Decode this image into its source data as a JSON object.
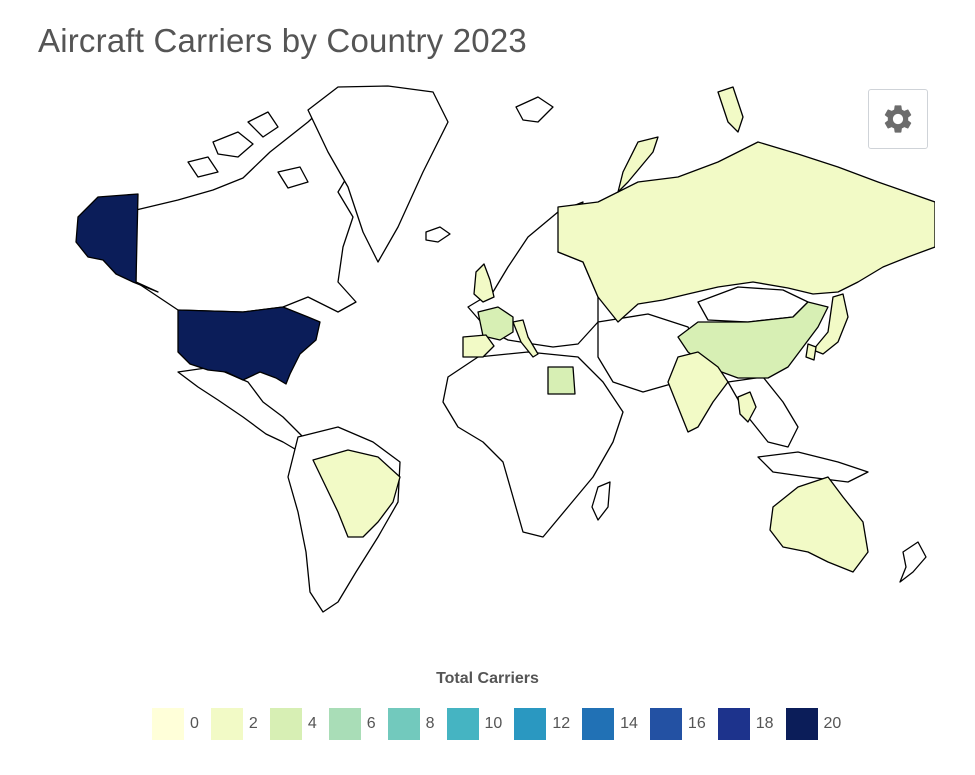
{
  "title": "Aircraft Carriers by Country 2023",
  "settings": {
    "icon": "gear-icon"
  },
  "legend": {
    "title": "Total Carriers",
    "items": [
      {
        "label": "0",
        "color": "#ffffd9"
      },
      {
        "label": "2",
        "color": "#f2fac6"
      },
      {
        "label": "4",
        "color": "#d7efb4"
      },
      {
        "label": "6",
        "color": "#a9ddb7"
      },
      {
        "label": "8",
        "color": "#72c9bd"
      },
      {
        "label": "10",
        "color": "#45b4c2"
      },
      {
        "label": "12",
        "color": "#2a98c1"
      },
      {
        "label": "14",
        "color": "#2171b5"
      },
      {
        "label": "16",
        "color": "#2351a3"
      },
      {
        "label": "18",
        "color": "#1d338c"
      },
      {
        "label": "20",
        "color": "#0b1d59"
      }
    ]
  },
  "map": {
    "colors": {
      "land_default": "#ffffff",
      "border": "#000000",
      "usa": "#0b1d59",
      "low": "#f2fac6",
      "mid": "#d7efb4"
    },
    "countries": [
      {
        "name": "United States",
        "carriers": 20
      },
      {
        "name": "Russia",
        "carriers": 1
      },
      {
        "name": "China",
        "carriers": 3
      },
      {
        "name": "United Kingdom",
        "carriers": 2
      },
      {
        "name": "France",
        "carriers": 4
      },
      {
        "name": "Italy",
        "carriers": 2
      },
      {
        "name": "Spain",
        "carriers": 1
      },
      {
        "name": "India",
        "carriers": 2
      },
      {
        "name": "Japan",
        "carriers": 2
      },
      {
        "name": "Brazil",
        "carriers": 1
      },
      {
        "name": "Australia",
        "carriers": 2
      },
      {
        "name": "Egypt",
        "carriers": 2
      },
      {
        "name": "Thailand",
        "carriers": 1
      },
      {
        "name": "South Korea",
        "carriers": 1
      }
    ]
  }
}
